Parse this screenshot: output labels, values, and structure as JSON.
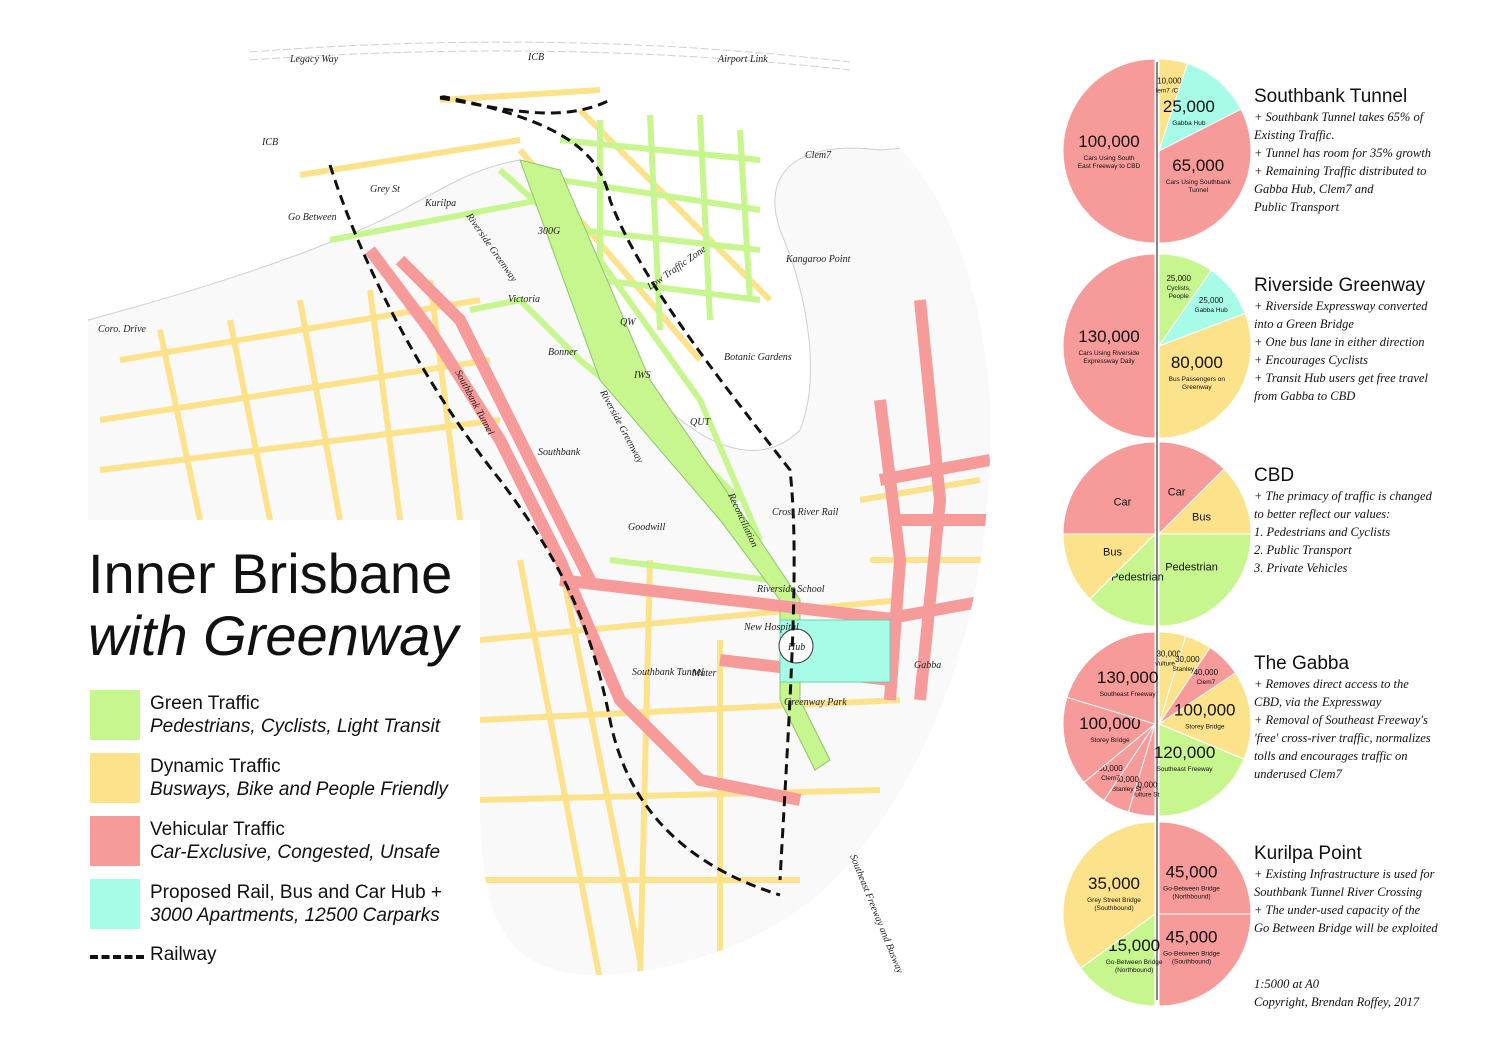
{
  "title": {
    "line1": "Inner Brisbane",
    "line2": "with Greenway"
  },
  "colors": {
    "green": "#c6f68d",
    "yellow": "#fde28c",
    "red": "#f79a9a",
    "cyan": "#a6fce6",
    "road_edge": "#c8c8c8",
    "railway": "#111111"
  },
  "legend": [
    {
      "name": "Green Traffic",
      "desc": "Pedestrians, Cyclists, Light Transit",
      "color": "#c6f68d"
    },
    {
      "name": "Dynamic Traffic",
      "desc": "Busways, Bike and People Friendly",
      "color": "#fde28c"
    },
    {
      "name": "Vehicular Traffic",
      "desc": "Car-Exclusive, Congested, Unsafe",
      "color": "#f79a9a"
    },
    {
      "name": "Proposed Rail, Bus and Car Hub +",
      "desc": "3000 Apartments, 12500 Carparks",
      "color": "#a6fce6"
    }
  ],
  "railway_label": "Railway",
  "map_labels": [
    "Legacy Way",
    "ICB",
    "Airport Link",
    "ICB",
    "Clem7",
    "Grey St",
    "Kurilpa",
    "Go Between",
    "300G",
    "Riverside Greenway",
    "Low Traffic Zone",
    "Kangaroo Point",
    "Victoria",
    "Coro. Drive",
    "QW",
    "Bonner",
    "IWS",
    "Botanic Gardens",
    "Southbank Tunnel",
    "Riverside Greenway",
    "QUT",
    "Southbank",
    "Goodwill",
    "Reconciliation",
    "Cross River Rail",
    "Riverside School",
    "New Hospital",
    "Hub",
    "Gabba",
    "Southbank Tunnel",
    "Mater",
    "Greenway Park",
    "Southeast Freeway and Busway"
  ],
  "chart_data": [
    {
      "type": "pie",
      "title": "Southbank Tunnel",
      "slices": [
        {
          "label": "Cars Using South East Freeway to CBD",
          "value": 100000,
          "big": "100,000",
          "color": "#f79a9a"
        },
        {
          "label": "Clem7 /CRR",
          "value": 10000,
          "big": "10,000",
          "color": "#fde28c"
        },
        {
          "label": "Gabba Hub",
          "value": 25000,
          "big": "25,000",
          "color": "#a6fce6"
        },
        {
          "label": "Cars Using Southbank Tunnel",
          "value": 65000,
          "big": "65,000",
          "color": "#f79a9a"
        }
      ],
      "notes": [
        "+ Southbank Tunnel takes 65% of",
        "Existing Traffic.",
        "+ Tunnel has room for 35% growth",
        "+ Remaining Traffic distributed to",
        "Gabba Hub, Clem7 and",
        "Public Transport"
      ]
    },
    {
      "type": "pie",
      "title": "Riverside Greenway",
      "slices": [
        {
          "label": "Cars Using Riverside Expressway Daily",
          "value": 130000,
          "big": "130,000",
          "color": "#f79a9a"
        },
        {
          "label": "Cyclists, People",
          "value": 25000,
          "big": "25,000",
          "color": "#c6f68d"
        },
        {
          "label": "Gabba Hub",
          "value": 25000,
          "big": "25,000",
          "color": "#a6fce6"
        },
        {
          "label": "Bus Passengers on Greenway",
          "value": 80000,
          "big": "80,000",
          "color": "#fde28c"
        }
      ],
      "notes": [
        "+ Riverside Expressway converted",
        "into a Green Bridge",
        "+ One bus lane in either direction",
        "+ Encourages Cyclists",
        "+ Transit Hub users get free travel",
        "from Gabba to CBD"
      ]
    },
    {
      "type": "pie",
      "title": "CBD",
      "slices": [
        {
          "label": "Car",
          "value": 1,
          "big": "",
          "color": "#f79a9a"
        },
        {
          "label": "Bus",
          "value": 1,
          "big": "",
          "color": "#fde28c"
        },
        {
          "label": "Pedestrian",
          "value": 2,
          "big": "",
          "color": "#c6f68d"
        },
        {
          "label": "Car",
          "value": 2,
          "big": "",
          "color": "#f79a9a"
        },
        {
          "label": "Bus",
          "value": 1,
          "big": "",
          "color": "#fde28c"
        },
        {
          "label": "Pedestrian",
          "value": 1,
          "big": "",
          "color": "#c6f68d"
        }
      ],
      "notes": [
        "+ The primacy of traffic is changed",
        "to better reflect our values:",
        "",
        "1. Pedestrians and Cyclists",
        "2. Public Transport",
        "3. Private Vehicles"
      ]
    },
    {
      "type": "pie",
      "title": "The Gabba",
      "slices": [
        {
          "label": "Vulture St",
          "value": 30000,
          "big": "30,000",
          "color": "#fde28c"
        },
        {
          "label": "Stanley St",
          "value": 30000,
          "big": "30,000",
          "color": "#fde28c"
        },
        {
          "label": "Clem7",
          "value": 40000,
          "big": "40,000",
          "color": "#f79a9a"
        },
        {
          "label": "Storey Bridge",
          "value": 100000,
          "big": "100,000",
          "color": "#fde28c"
        },
        {
          "label": "Southeast Freeway",
          "value": 120000,
          "big": "120,000",
          "color": "#c6f68d"
        },
        {
          "label": "Southeast Freeway",
          "value": 130000,
          "big": "130,000",
          "color": "#f79a9a"
        },
        {
          "label": "Storey Bridge",
          "value": 100000,
          "big": "100,000",
          "color": "#f79a9a"
        },
        {
          "label": "Clem7",
          "value": 30000,
          "big": "30,000",
          "color": "#f79a9a"
        },
        {
          "label": "Stanley St",
          "value": 30000,
          "big": "30,000",
          "color": "#f79a9a"
        },
        {
          "label": "Vulture St",
          "value": 30000,
          "big": "30,000",
          "color": "#f79a9a"
        }
      ],
      "notes": [
        "+ Removes direct access to the",
        "CBD, via the Expressway",
        "+ Removal of Southeast Freeway's",
        "'free' cross-river traffic, normalizes",
        "tolls and encourages traffic on",
        "underused Clem7"
      ]
    },
    {
      "type": "pie",
      "title": "Kurilpa Point",
      "slices": [
        {
          "label": "Go-Between Bridge (Northbound)",
          "value": 45000,
          "big": "45,000",
          "color": "#f79a9a"
        },
        {
          "label": "Go-Between Bridge (Southbound)",
          "value": 45000,
          "big": "45,000",
          "color": "#f79a9a"
        },
        {
          "label": "Grey Street Bridge (Southbound)",
          "value": 35000,
          "big": "35,000",
          "color": "#fde28c"
        },
        {
          "label": "Go-Between Bridge (Northbound)",
          "value": 15000,
          "big": "15,000",
          "color": "#c6f68d"
        }
      ],
      "notes": [
        "+ Existing Infrastructure is used for",
        "Southbank Tunnel River Crossing",
        "+ The under-used capacity of the",
        "Go Between Bridge will be exploited"
      ]
    }
  ],
  "footer": {
    "scale": "1:5000 at A0",
    "copyright": "Copyright, Brendan Roffey, 2017"
  }
}
